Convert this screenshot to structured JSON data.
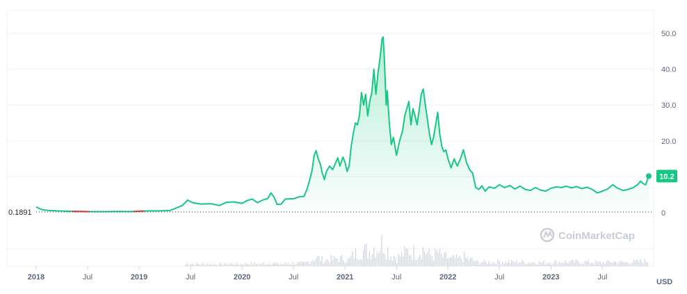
{
  "chart_data": {
    "type": "area",
    "currency_label": "USD",
    "start_label": "0.1891",
    "last_value_label": "10.2",
    "watermark": "CoinMarketCap",
    "y_ticks": [
      {
        "value": 50,
        "label": "50.0"
      },
      {
        "value": 40,
        "label": "40.0"
      },
      {
        "value": 30,
        "label": "30.0"
      },
      {
        "value": 20,
        "label": "20.0"
      },
      {
        "value": 10,
        "label": ""
      },
      {
        "value": 0,
        "label": "0"
      }
    ],
    "ylim": [
      0,
      57
    ],
    "x_ticks": [
      {
        "t": 2018.0,
        "label": "2018",
        "major": true
      },
      {
        "t": 2018.5,
        "label": "Jul",
        "major": false
      },
      {
        "t": 2019.0,
        "label": "2019",
        "major": true
      },
      {
        "t": 2019.5,
        "label": "Jul",
        "major": false
      },
      {
        "t": 2020.0,
        "label": "2020",
        "major": true
      },
      {
        "t": 2020.5,
        "label": "Jul",
        "major": false
      },
      {
        "t": 2021.0,
        "label": "2021",
        "major": true
      },
      {
        "t": 2021.5,
        "label": "Jul",
        "major": false
      },
      {
        "t": 2022.0,
        "label": "2022",
        "major": true
      },
      {
        "t": 2022.5,
        "label": "Jul",
        "major": false
      },
      {
        "t": 2023.0,
        "label": "2023",
        "major": true
      },
      {
        "t": 2023.5,
        "label": "Jul",
        "major": false
      }
    ],
    "xlim": [
      2018.0,
      2023.95
    ],
    "series": [
      {
        "color_up": "#16c784",
        "color_down": "#ea3943",
        "points": [
          [
            2018.0,
            1.6
          ],
          [
            2018.05,
            0.9
          ],
          [
            2018.12,
            0.6
          ],
          [
            2018.2,
            0.5
          ],
          [
            2018.3,
            0.4
          ],
          [
            2018.4,
            0.35
          ],
          [
            2018.5,
            0.3
          ],
          [
            2018.6,
            0.3
          ],
          [
            2018.7,
            0.3
          ],
          [
            2018.8,
            0.35
          ],
          [
            2018.9,
            0.3
          ],
          [
            2019.0,
            0.4
          ],
          [
            2019.1,
            0.5
          ],
          [
            2019.2,
            0.5
          ],
          [
            2019.3,
            0.6
          ],
          [
            2019.35,
            1.2
          ],
          [
            2019.42,
            2.0
          ],
          [
            2019.47,
            3.5
          ],
          [
            2019.52,
            2.8
          ],
          [
            2019.6,
            2.4
          ],
          [
            2019.7,
            2.5
          ],
          [
            2019.78,
            2.0
          ],
          [
            2019.85,
            2.9
          ],
          [
            2019.92,
            3.0
          ],
          [
            2020.0,
            2.6
          ],
          [
            2020.05,
            3.4
          ],
          [
            2020.1,
            3.8
          ],
          [
            2020.15,
            2.8
          ],
          [
            2020.2,
            3.5
          ],
          [
            2020.25,
            4.0
          ],
          [
            2020.28,
            5.5
          ],
          [
            2020.31,
            4.4
          ],
          [
            2020.34,
            2.3
          ],
          [
            2020.38,
            2.4
          ],
          [
            2020.42,
            3.8
          ],
          [
            2020.5,
            3.9
          ],
          [
            2020.56,
            4.5
          ],
          [
            2020.6,
            4.5
          ],
          [
            2020.63,
            6.5
          ],
          [
            2020.66,
            9.5
          ],
          [
            2020.68,
            11.8
          ],
          [
            2020.7,
            16.0
          ],
          [
            2020.72,
            17.3
          ],
          [
            2020.74,
            15.0
          ],
          [
            2020.76,
            13.5
          ],
          [
            2020.78,
            11.0
          ],
          [
            2020.8,
            9.2
          ],
          [
            2020.82,
            11.5
          ],
          [
            2020.85,
            13.0
          ],
          [
            2020.88,
            12.0
          ],
          [
            2020.91,
            14.0
          ],
          [
            2020.93,
            15.3
          ],
          [
            2020.95,
            13.0
          ],
          [
            2020.98,
            15.5
          ],
          [
            2021.0,
            14.0
          ],
          [
            2021.02,
            11.5
          ],
          [
            2021.04,
            13.0
          ],
          [
            2021.06,
            18.5
          ],
          [
            2021.08,
            22.0
          ],
          [
            2021.1,
            25.0
          ],
          [
            2021.12,
            24.5
          ],
          [
            2021.14,
            27.0
          ],
          [
            2021.16,
            33.5
          ],
          [
            2021.18,
            30.0
          ],
          [
            2021.2,
            33.0
          ],
          [
            2021.22,
            27.0
          ],
          [
            2021.24,
            31.0
          ],
          [
            2021.26,
            33.5
          ],
          [
            2021.28,
            40.0
          ],
          [
            2021.3,
            33.0
          ],
          [
            2021.32,
            39.0
          ],
          [
            2021.34,
            43.0
          ],
          [
            2021.36,
            48.5
          ],
          [
            2021.37,
            49.0
          ],
          [
            2021.38,
            44.0
          ],
          [
            2021.4,
            30.0
          ],
          [
            2021.41,
            34.0
          ],
          [
            2021.43,
            25.0
          ],
          [
            2021.45,
            19.0
          ],
          [
            2021.47,
            21.0
          ],
          [
            2021.5,
            16.0
          ],
          [
            2021.53,
            20.0
          ],
          [
            2021.56,
            23.0
          ],
          [
            2021.58,
            27.0
          ],
          [
            2021.6,
            29.0
          ],
          [
            2021.62,
            31.0
          ],
          [
            2021.64,
            24.5
          ],
          [
            2021.66,
            29.0
          ],
          [
            2021.68,
            27.0
          ],
          [
            2021.7,
            24.5
          ],
          [
            2021.72,
            28.5
          ],
          [
            2021.74,
            33.0
          ],
          [
            2021.76,
            34.5
          ],
          [
            2021.78,
            30.0
          ],
          [
            2021.8,
            26.0
          ],
          [
            2021.82,
            22.0
          ],
          [
            2021.84,
            19.0
          ],
          [
            2021.86,
            21.0
          ],
          [
            2021.88,
            24.5
          ],
          [
            2021.9,
            28.0
          ],
          [
            2021.92,
            22.0
          ],
          [
            2021.94,
            18.5
          ],
          [
            2021.96,
            17.0
          ],
          [
            2021.98,
            17.5
          ],
          [
            2022.0,
            15.0
          ],
          [
            2022.03,
            12.5
          ],
          [
            2022.06,
            15.0
          ],
          [
            2022.09,
            13.0
          ],
          [
            2022.12,
            15.0
          ],
          [
            2022.15,
            17.5
          ],
          [
            2022.18,
            14.0
          ],
          [
            2022.21,
            12.0
          ],
          [
            2022.24,
            11.0
          ],
          [
            2022.27,
            7.0
          ],
          [
            2022.3,
            6.5
          ],
          [
            2022.33,
            7.5
          ],
          [
            2022.36,
            6.0
          ],
          [
            2022.4,
            7.2
          ],
          [
            2022.45,
            6.8
          ],
          [
            2022.5,
            7.8
          ],
          [
            2022.55,
            7.0
          ],
          [
            2022.6,
            7.6
          ],
          [
            2022.65,
            6.6
          ],
          [
            2022.7,
            7.4
          ],
          [
            2022.75,
            6.5
          ],
          [
            2022.8,
            6.2
          ],
          [
            2022.85,
            7.0
          ],
          [
            2022.9,
            6.3
          ],
          [
            2022.95,
            6.0
          ],
          [
            2023.0,
            6.8
          ],
          [
            2023.05,
            7.2
          ],
          [
            2023.1,
            7.0
          ],
          [
            2023.15,
            7.4
          ],
          [
            2023.2,
            6.9
          ],
          [
            2023.25,
            7.3
          ],
          [
            2023.3,
            6.7
          ],
          [
            2023.35,
            7.1
          ],
          [
            2023.4,
            6.5
          ],
          [
            2023.45,
            5.5
          ],
          [
            2023.5,
            6.0
          ],
          [
            2023.55,
            6.6
          ],
          [
            2023.6,
            7.8
          ],
          [
            2023.65,
            6.8
          ],
          [
            2023.7,
            6.2
          ],
          [
            2023.75,
            6.5
          ],
          [
            2023.8,
            7.0
          ],
          [
            2023.84,
            7.8
          ],
          [
            2023.87,
            8.8
          ],
          [
            2023.9,
            8.0
          ],
          [
            2023.92,
            7.8
          ],
          [
            2023.94,
            9.4
          ],
          [
            2023.95,
            10.2
          ]
        ],
        "down_ranges": [
          [
            2018.35,
            2018.52
          ],
          [
            2018.95,
            2019.05
          ]
        ]
      }
    ],
    "volume_overlay": true,
    "grid": true
  }
}
